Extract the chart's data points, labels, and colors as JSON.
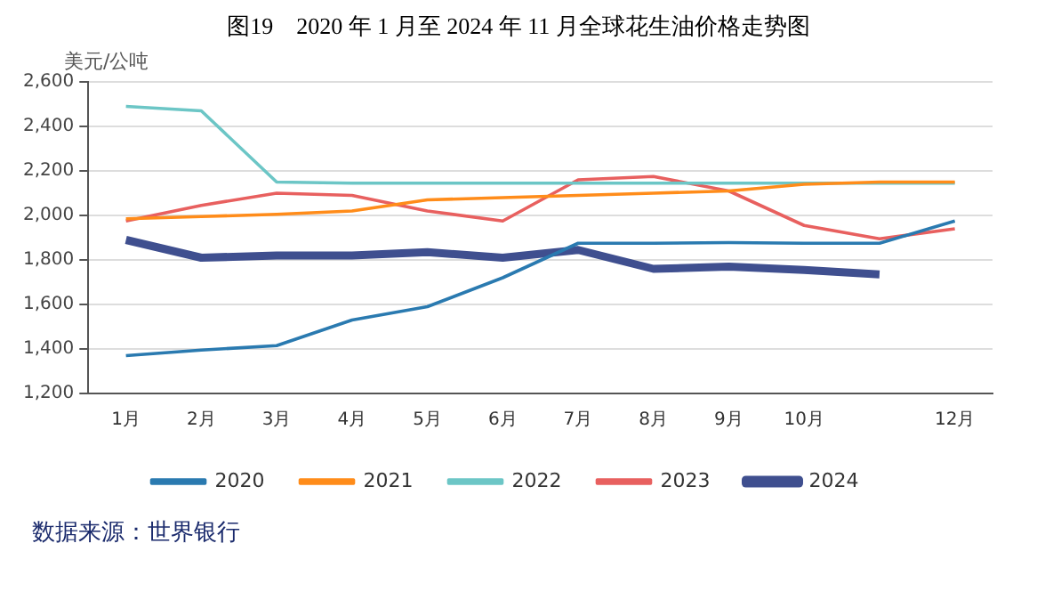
{
  "chart_data": {
    "type": "line",
    "title": "图19　2020 年 1 月至 2024 年 11 月全球花生油价格走势图",
    "ylabel": "美元/公吨",
    "categories": [
      "1月",
      "2月",
      "3月",
      "4月",
      "5月",
      "6月",
      "7月",
      "8月",
      "9月",
      "10月",
      null,
      "12月"
    ],
    "series": [
      {
        "name": "2020",
        "color": "#2a7ab0",
        "values": [
          1370,
          1395,
          1415,
          1530,
          1590,
          1720,
          1875,
          1875,
          1878,
          1875,
          1875,
          1975
        ]
      },
      {
        "name": "2021",
        "color": "#ff8c1a",
        "values": [
          1985,
          1995,
          2005,
          2020,
          2070,
          2080,
          2090,
          2100,
          2110,
          2140,
          2150,
          2150
        ]
      },
      {
        "name": "2022",
        "color": "#6cc6c6",
        "values": [
          2490,
          2470,
          2150,
          2145,
          2145,
          2145,
          2145,
          2145,
          2145,
          2145,
          2145,
          2145
        ]
      },
      {
        "name": "2023",
        "color": "#e8605f",
        "values": [
          1975,
          2045,
          2100,
          2090,
          2020,
          1975,
          2160,
          2175,
          2110,
          1955,
          1895,
          1940
        ]
      },
      {
        "name": "2024",
        "color": "#3f4f8f",
        "values": [
          1890,
          1810,
          1820,
          1820,
          1835,
          1810,
          1845,
          1760,
          1770,
          1755,
          1735,
          null
        ]
      }
    ],
    "ylim": [
      1200,
      2600
    ],
    "yticks": [
      {
        "value": 1200,
        "label": "1,200"
      },
      {
        "value": 1400,
        "label": "1,400"
      },
      {
        "value": 1600,
        "label": "1,600"
      },
      {
        "value": 1800,
        "label": "1,800"
      },
      {
        "value": 2000,
        "label": "2,000"
      },
      {
        "value": 2200,
        "label": "2,200"
      },
      {
        "value": 2400,
        "label": "2,400"
      },
      {
        "value": 2600,
        "label": "2,600"
      }
    ],
    "grid": "y",
    "legend": "bottom",
    "marker": "none",
    "line_style": "solid",
    "annotations": [
      "数据来源：世界银行"
    ]
  }
}
